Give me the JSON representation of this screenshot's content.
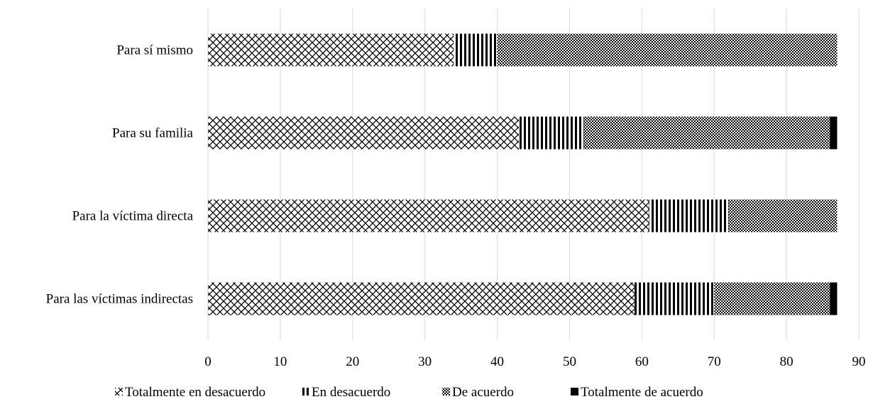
{
  "chart_data": {
    "type": "bar",
    "orientation": "horizontal",
    "stacked": true,
    "title": "",
    "xlabel": "",
    "ylabel": "",
    "categories": [
      "Para sí mismo",
      "Para su familia",
      "Para la víctima directa",
      "Para las víctimas indirectas"
    ],
    "series": [
      {
        "name": "Totalmente en desacuerdo",
        "values": [
          34,
          43,
          61,
          59
        ],
        "pattern": "crosshatch"
      },
      {
        "name": "En desacuerdo",
        "values": [
          6,
          9,
          11,
          11
        ],
        "pattern": "vertical-stripes"
      },
      {
        "name": "De acuerdo",
        "values": [
          47,
          34,
          15,
          16
        ],
        "pattern": "fine-checker"
      },
      {
        "name": "Totalmente de acuerdo",
        "values": [
          0,
          1,
          0,
          1
        ],
        "pattern": "solid"
      }
    ],
    "xlim": [
      0,
      90
    ],
    "xticks": [
      "0",
      "10",
      "20",
      "30",
      "40",
      "50",
      "60",
      "70",
      "80",
      "90"
    ],
    "grid": "vertical",
    "legend_position": "bottom",
    "colors": {
      "ink": "#000000",
      "grid": "#d9d9d9",
      "background": "#ffffff"
    }
  }
}
